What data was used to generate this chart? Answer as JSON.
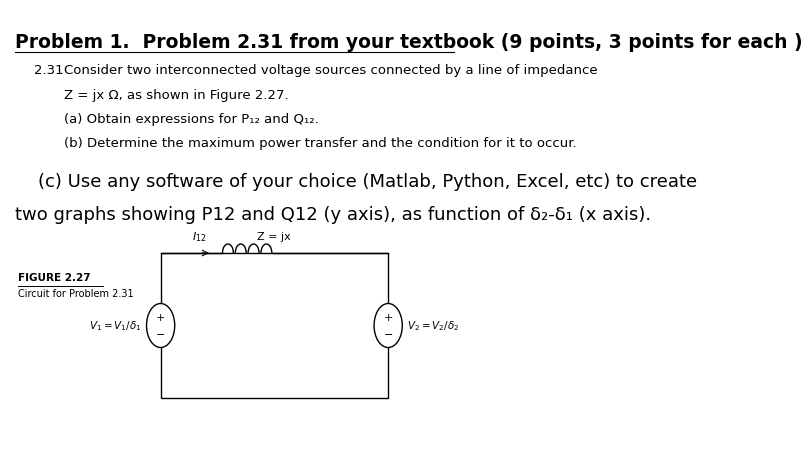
{
  "bg_color": "#ffffff",
  "title_bold": "Problem 1.  Problem 2.31 from your textbook (9 points, 3 points for each )",
  "title_fontsize": 13.5,
  "body_text_231": "2.31",
  "body_line1": "Consider two interconnected voltage sources connected by a line of impedance",
  "body_line2": "Z = jx Ω, as shown in Figure 2.27.",
  "body_line3": "(a) Obtain expressions for P₁₂ and Q₁₂.",
  "body_line4": "(b) Determine the maximum power transfer and the condition for it to occur.",
  "part_c_line1": "    (c) Use any software of your choice (Matlab, Python, Excel, etc) to create",
  "part_c_line2": "two graphs showing P12 and Q12 (y axis), as function of δ₂-δ₁ (x axis).",
  "figure_label": "FIGURE 2.27",
  "figure_caption": "Circuit for Problem 2.31",
  "circuit_label_z": "Z = jx",
  "circuit_label_i": "I₁₂",
  "circuit_label_v1": "V₁ = V₁/δ₁",
  "circuit_label_v2": "V₂ = V₂/δ₂",
  "text_color": "#000000",
  "line_color": "#000000",
  "body_fontsize": 9.5,
  "part_c_fontsize": 13.0
}
